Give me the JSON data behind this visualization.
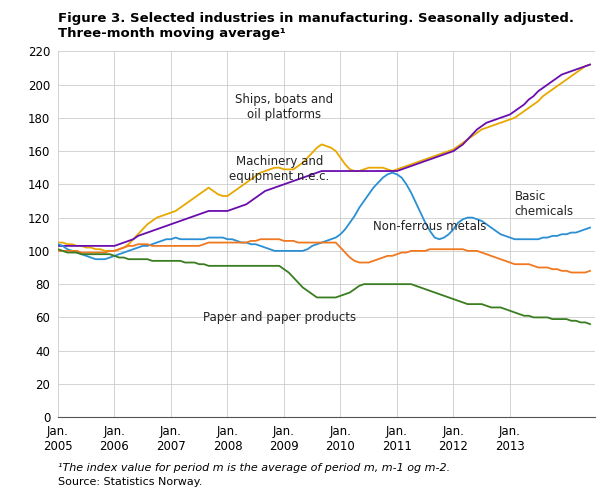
{
  "title_line1": "Figure 3. Selected industries in manufacturing. Seasonally adjusted.",
  "title_line2": "Three-month moving average¹",
  "footnote": "¹The index value for period m is the average of period m, m-1 og m-2.",
  "source": "Source: Statistics Norway.",
  "ylim": [
    0,
    220
  ],
  "yticks": [
    0,
    20,
    40,
    60,
    80,
    100,
    120,
    140,
    160,
    180,
    200,
    220
  ],
  "xtick_labels": [
    "Jan.\n2005",
    "Jan.\n2006",
    "Jan.\n2007",
    "Jan.\n2008",
    "Jan.\n2009",
    "Jan.\n2010",
    "Jan.\n2011",
    "Jan.\n2012",
    "Jan.\n2013"
  ],
  "series": {
    "ships": {
      "color": "#E8A800",
      "label": "Ships, boats and\noil platforms"
    },
    "machinery": {
      "color": "#6A0DAD",
      "label": "Machinery and\nequipment n.e.c."
    },
    "nonferrous": {
      "color": "#2B8FD4",
      "label": "Non-ferrous metals"
    },
    "basic": {
      "color": "#F07820",
      "label": "Basic\nchemicals"
    },
    "paper": {
      "color": "#3A7D20",
      "label": "Paper and paper products"
    }
  },
  "ships_data": [
    105,
    105,
    104,
    104,
    103,
    103,
    102,
    102,
    101,
    101,
    100,
    100,
    100,
    101,
    102,
    104,
    107,
    110,
    113,
    116,
    118,
    120,
    121,
    122,
    123,
    124,
    126,
    128,
    130,
    132,
    134,
    136,
    138,
    136,
    134,
    133,
    133,
    135,
    137,
    139,
    141,
    143,
    145,
    147,
    148,
    149,
    150,
    150,
    149,
    149,
    149,
    151,
    153,
    156,
    159,
    162,
    164,
    163,
    162,
    160,
    156,
    152,
    149,
    148,
    148,
    149,
    150,
    150,
    150,
    150,
    149,
    148,
    149,
    150,
    151,
    152,
    153,
    154,
    155,
    156,
    157,
    158,
    159,
    160,
    161,
    163,
    165,
    167,
    169,
    171,
    173,
    174,
    175,
    176,
    177,
    178,
    179,
    180,
    182,
    184,
    186,
    188,
    190,
    193,
    195,
    197,
    199,
    201,
    203,
    205,
    207,
    209,
    211,
    212
  ],
  "machinery_data": [
    103,
    103,
    103,
    103,
    103,
    103,
    103,
    103,
    103,
    103,
    103,
    103,
    103,
    104,
    105,
    106,
    107,
    109,
    110,
    111,
    112,
    113,
    114,
    115,
    116,
    117,
    118,
    119,
    120,
    121,
    122,
    123,
    124,
    124,
    124,
    124,
    124,
    125,
    126,
    127,
    128,
    130,
    132,
    134,
    136,
    137,
    138,
    139,
    140,
    141,
    142,
    143,
    144,
    145,
    146,
    147,
    148,
    148,
    148,
    148,
    148,
    148,
    148,
    148,
    148,
    148,
    148,
    148,
    148,
    148,
    148,
    148,
    148,
    149,
    150,
    151,
    152,
    153,
    154,
    155,
    156,
    157,
    158,
    159,
    160,
    162,
    164,
    167,
    170,
    173,
    175,
    177,
    178,
    179,
    180,
    181,
    182,
    184,
    186,
    188,
    191,
    193,
    196,
    198,
    200,
    202,
    204,
    206,
    207,
    208,
    209,
    210,
    211,
    212
  ],
  "nonferrous_data": [
    104,
    103,
    101,
    100,
    99,
    98,
    97,
    96,
    95,
    95,
    95,
    96,
    97,
    98,
    99,
    100,
    101,
    102,
    103,
    103,
    104,
    105,
    106,
    107,
    107,
    108,
    107,
    107,
    107,
    107,
    107,
    107,
    108,
    108,
    108,
    108,
    107,
    107,
    106,
    105,
    105,
    104,
    104,
    103,
    102,
    101,
    100,
    100,
    100,
    100,
    100,
    100,
    100,
    101,
    103,
    104,
    105,
    106,
    107,
    108,
    110,
    113,
    117,
    121,
    126,
    130,
    134,
    138,
    141,
    144,
    146,
    147,
    146,
    144,
    140,
    135,
    129,
    123,
    117,
    112,
    108,
    107,
    108,
    110,
    113,
    117,
    119,
    120,
    120,
    119,
    118,
    116,
    114,
    112,
    110,
    109,
    108,
    107,
    107,
    107,
    107,
    107,
    107,
    108,
    108,
    109,
    109,
    110,
    110,
    111,
    111,
    112,
    113,
    114
  ],
  "basic_data": [
    100,
    100,
    100,
    100,
    100,
    99,
    99,
    99,
    99,
    99,
    99,
    100,
    100,
    101,
    102,
    103,
    103,
    104,
    104,
    104,
    103,
    103,
    103,
    103,
    103,
    103,
    103,
    103,
    103,
    103,
    103,
    104,
    105,
    105,
    105,
    105,
    105,
    105,
    105,
    105,
    105,
    106,
    106,
    107,
    107,
    107,
    107,
    107,
    106,
    106,
    106,
    105,
    105,
    105,
    105,
    105,
    105,
    105,
    105,
    105,
    102,
    99,
    96,
    94,
    93,
    93,
    93,
    94,
    95,
    96,
    97,
    97,
    98,
    99,
    99,
    100,
    100,
    100,
    100,
    101,
    101,
    101,
    101,
    101,
    101,
    101,
    101,
    100,
    100,
    100,
    99,
    98,
    97,
    96,
    95,
    94,
    93,
    92,
    92,
    92,
    92,
    91,
    90,
    90,
    90,
    89,
    89,
    88,
    88,
    87,
    87,
    87,
    87,
    88
  ],
  "paper_data": [
    101,
    100,
    99,
    99,
    99,
    98,
    98,
    98,
    98,
    98,
    98,
    98,
    97,
    96,
    96,
    95,
    95,
    95,
    95,
    95,
    94,
    94,
    94,
    94,
    94,
    94,
    94,
    93,
    93,
    93,
    92,
    92,
    91,
    91,
    91,
    91,
    91,
    91,
    91,
    91,
    91,
    91,
    91,
    91,
    91,
    91,
    91,
    91,
    89,
    87,
    84,
    81,
    78,
    76,
    74,
    72,
    72,
    72,
    72,
    72,
    73,
    74,
    75,
    77,
    79,
    80,
    80,
    80,
    80,
    80,
    80,
    80,
    80,
    80,
    80,
    80,
    79,
    78,
    77,
    76,
    75,
    74,
    73,
    72,
    71,
    70,
    69,
    68,
    68,
    68,
    68,
    67,
    66,
    66,
    66,
    65,
    64,
    63,
    62,
    61,
    61,
    60,
    60,
    60,
    60,
    59,
    59,
    59,
    59,
    58,
    58,
    57,
    57,
    56
  ]
}
